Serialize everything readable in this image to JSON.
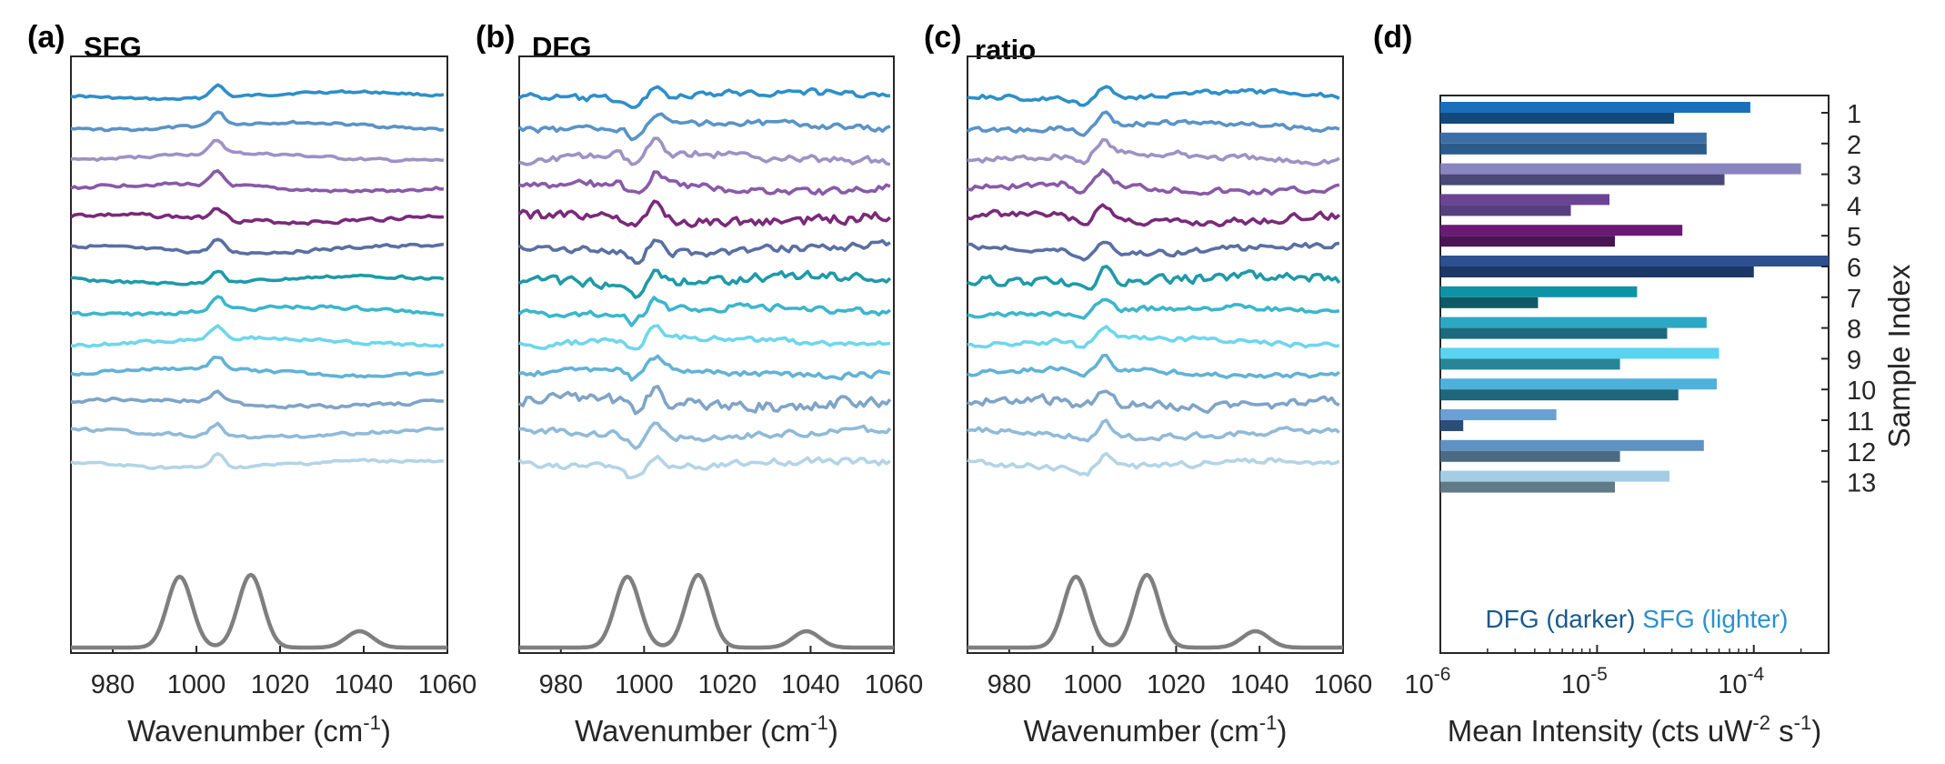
{
  "chart_data": [
    {
      "type": "line",
      "panel": "(a)",
      "title": "SFG",
      "xlabel": "Wavenumber (cm",
      "xlabel_sup": "-1",
      "xlabel_end": ")",
      "xlim": [
        970,
        1060
      ],
      "xticks": [
        "980",
        "1000",
        "1020",
        "1040",
        "1060"
      ],
      "reference_peaks": [
        996,
        1013,
        1039
      ],
      "feature": {
        "center": 1003.5,
        "dip": 0.0
      },
      "series": [
        {
          "values": [
            1,
            2,
            3,
            4,
            5,
            6,
            7,
            8,
            9,
            10,
            11,
            12,
            13
          ],
          "sample_index": true
        }
      ]
    },
    {
      "type": "line",
      "panel": "(b)",
      "title": "DFG",
      "xlabel": "Wavenumber (cm",
      "xlabel_sup": "-1",
      "xlabel_end": ")",
      "xlim": [
        970,
        1060
      ],
      "xticks": [
        "980",
        "1000",
        "1020",
        "1040",
        "1060"
      ],
      "reference_peaks": [
        996,
        1013,
        1039
      ],
      "feature": {
        "center": 1001.5,
        "dip": 1.0
      },
      "series": [
        {
          "values": [
            1,
            2,
            3,
            4,
            5,
            6,
            7,
            8,
            9,
            10,
            11,
            12,
            13
          ],
          "sample_index": true
        }
      ]
    },
    {
      "type": "line",
      "panel": "(c)",
      "title": "ratio",
      "xlabel": "Wavenumber (cm",
      "xlabel_sup": "-1",
      "xlabel_end": ")",
      "xlim": [
        970,
        1060
      ],
      "xticks": [
        "980",
        "1000",
        "1020",
        "1040",
        "1060"
      ],
      "reference_peaks": [
        996,
        1013,
        1039
      ],
      "feature": {
        "center": 1001.5,
        "dip": 0.7
      },
      "series": [
        {
          "values": [
            1,
            2,
            3,
            4,
            5,
            6,
            7,
            8,
            9,
            10,
            11,
            12,
            13
          ],
          "sample_index": true
        }
      ]
    },
    {
      "type": "bar",
      "panel": "(d)",
      "orientation": "horizontal",
      "xscale": "log",
      "xlim": [
        1e-06,
        0.0003
      ],
      "xlabel": "Mean Intensity (cts uW",
      "xlabel_sup1": "-2",
      "xlabel_mid": " s",
      "xlabel_sup2": "-1",
      "xlabel_end": ")",
      "ylabel": "Sample Index",
      "categories": [
        "1",
        "2",
        "3",
        "4",
        "5",
        "6",
        "7",
        "8",
        "9",
        "10",
        "11",
        "12",
        "13"
      ],
      "series": [
        {
          "name": "SFG (lighter)",
          "values": [
            9.5e-05,
            5e-05,
            0.0002,
            1.2e-05,
            3.5e-05,
            0.0003,
            1.8e-05,
            5e-05,
            6e-05,
            5.8e-05,
            5.5e-06,
            4.8e-05,
            2.9e-05
          ]
        },
        {
          "name": "DFG (darker)",
          "values": [
            3.1e-05,
            5e-05,
            6.5e-05,
            6.8e-06,
            1.3e-05,
            0.0001,
            4.2e-06,
            2.8e-05,
            1.4e-05,
            3.3e-05,
            1.4e-06,
            1.4e-05,
            1.3e-05
          ]
        }
      ],
      "legend": {
        "dfg": "DFG (darker)",
        "sfg": "SFG (lighter)"
      },
      "xticks": [
        {
          "base": "10",
          "exp": "-6"
        },
        {
          "base": "10",
          "exp": "-5"
        },
        {
          "base": "10",
          "exp": "-4"
        }
      ]
    }
  ],
  "panel_d_letter": "(d)",
  "colors": {
    "sample_light": [
      "#2f8fc8",
      "#5a93c6",
      "#9e92c4",
      "#895aa8",
      "#7a2a7a",
      "#5a6fa2",
      "#1e9aa8",
      "#3cb6cc",
      "#6fd6ec",
      "#62b2d6",
      "#7fa4c8",
      "#90bad8",
      "#b4d4e6"
    ],
    "sample_dark": [
      "#11497a",
      "#2c5a8a",
      "#4a4876",
      "#553f7e",
      "#4a1454",
      "#1c3666",
      "#0e5a66",
      "#1d6a7c",
      "#2a8498",
      "#1e667c",
      "#2a4e78",
      "#4c6a82",
      "#607a88"
    ],
    "sample_bar_light": [
      "#1a6fb8",
      "#3c6ea6",
      "#8a84c0",
      "#6c4494",
      "#6a1a74",
      "#2e4f90",
      "#0e93a6",
      "#2aa8c4",
      "#58d4f0",
      "#4eb0dc",
      "#6aa0d4",
      "#5e92c2",
      "#a4cce4"
    ],
    "reference": "#7f7f7f",
    "legend_dfg": "#1a5a8c",
    "legend_sfg": "#2a92cc",
    "axis": "#262626"
  }
}
